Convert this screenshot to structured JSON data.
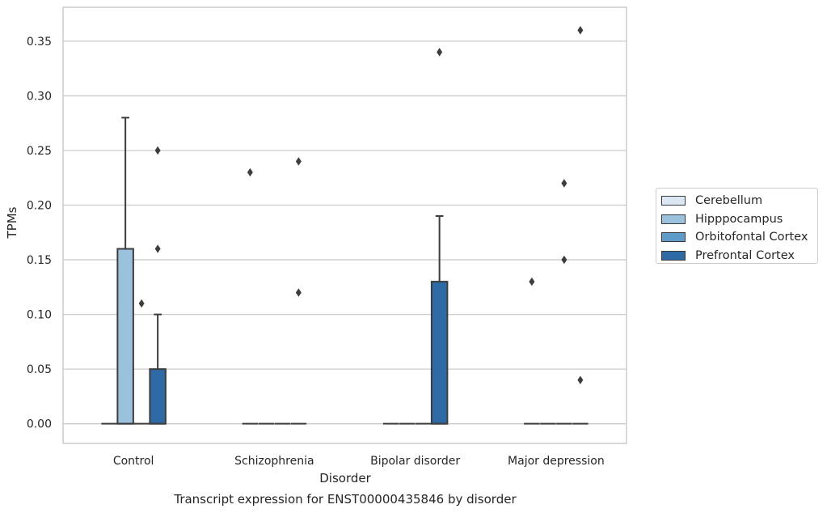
{
  "chart_data": {
    "type": "box",
    "title": "Transcript expression for ENST00000435846 by disorder",
    "xlabel": "Disorder",
    "ylabel": "TPMs",
    "ylim": [
      -0.018,
      0.381
    ],
    "yticks": [
      "0.00",
      "0.05",
      "0.10",
      "0.15",
      "0.20",
      "0.25",
      "0.30",
      "0.35"
    ],
    "grid": true,
    "legend_position": "right",
    "categories": [
      "Control",
      "Schizophrenia",
      "Bipolar disorder",
      "Major depression"
    ],
    "series": [
      {
        "name": "Cerebellum",
        "color": "#dbe7f2",
        "boxes": [
          {
            "q1": 0,
            "median": 0,
            "q3": 0,
            "whisker_low": 0,
            "whisker_high": 0,
            "outliers": []
          },
          {
            "q1": 0,
            "median": 0,
            "q3": 0,
            "whisker_low": 0,
            "whisker_high": 0,
            "outliers": [
              0.23
            ]
          },
          {
            "q1": 0,
            "median": 0,
            "q3": 0,
            "whisker_low": 0,
            "whisker_high": 0,
            "outliers": []
          },
          {
            "q1": 0,
            "median": 0,
            "q3": 0,
            "whisker_low": 0,
            "whisker_high": 0,
            "outliers": [
              0.13
            ]
          }
        ]
      },
      {
        "name": "Hipppocampus",
        "color": "#9bc2dd",
        "boxes": [
          {
            "q1": 0,
            "median": 0,
            "q3": 0.16,
            "whisker_low": 0,
            "whisker_high": 0.28,
            "outliers": []
          },
          {
            "q1": 0,
            "median": 0,
            "q3": 0,
            "whisker_low": 0,
            "whisker_high": 0,
            "outliers": []
          },
          {
            "q1": 0,
            "median": 0,
            "q3": 0,
            "whisker_low": 0,
            "whisker_high": 0,
            "outliers": []
          },
          {
            "q1": 0,
            "median": 0,
            "q3": 0,
            "whisker_low": 0,
            "whisker_high": 0,
            "outliers": []
          }
        ]
      },
      {
        "name": "Orbitofontal Cortex",
        "color": "#5d9cc9",
        "boxes": [
          {
            "q1": 0,
            "median": 0,
            "q3": 0,
            "whisker_low": 0,
            "whisker_high": 0,
            "outliers": [
              0.11
            ]
          },
          {
            "q1": 0,
            "median": 0,
            "q3": 0,
            "whisker_low": 0,
            "whisker_high": 0,
            "outliers": []
          },
          {
            "q1": 0,
            "median": 0,
            "q3": 0,
            "whisker_low": 0,
            "whisker_high": 0,
            "outliers": []
          },
          {
            "q1": 0,
            "median": 0,
            "q3": 0,
            "whisker_low": 0,
            "whisker_high": 0,
            "outliers": [
              0.15,
              0.22
            ]
          }
        ]
      },
      {
        "name": "Prefrontal Cortex",
        "color": "#2e6aa6",
        "boxes": [
          {
            "q1": 0,
            "median": 0,
            "q3": 0.05,
            "whisker_low": 0,
            "whisker_high": 0.1,
            "outliers": [
              0.16,
              0.25
            ]
          },
          {
            "q1": 0,
            "median": 0,
            "q3": 0,
            "whisker_low": 0,
            "whisker_high": 0,
            "outliers": [
              0.12,
              0.24
            ]
          },
          {
            "q1": 0,
            "median": 0,
            "q3": 0.13,
            "whisker_low": 0,
            "whisker_high": 0.19,
            "outliers": [
              0.34
            ]
          },
          {
            "q1": 0,
            "median": 0,
            "q3": 0,
            "whisker_low": 0,
            "whisker_high": 0,
            "outliers": [
              0.04,
              0.36
            ]
          }
        ]
      }
    ]
  }
}
